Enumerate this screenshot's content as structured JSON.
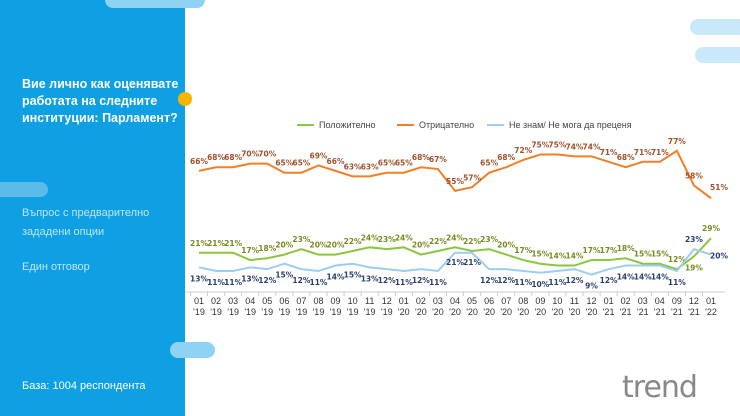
{
  "panel": {
    "title": "Вие лично как оценявате работата на следните институции:  Парламент?",
    "question_type": "Въпрос с предварително зададени опции",
    "answer_type": "Един отговор",
    "base": "База:  1004 респондента"
  },
  "logo": "trend",
  "chart_data": {
    "type": "line",
    "legend_position": "top",
    "grid": false,
    "x": [
      "01 '19",
      "02 '19",
      "03 '19",
      "04 '19",
      "05 '19",
      "06 '19",
      "07 '19",
      "08 '19",
      "09 '19",
      "10 '19",
      "11 '19",
      "12 '19",
      "01 '20",
      "02 '20",
      "03 '20",
      "04 '20",
      "05 '20",
      "06 '20",
      "07 '20",
      "08 '20",
      "09 '20",
      "10 '20",
      "11 '20",
      "12 '20",
      "01 '21",
      "02 '21",
      "03 '21",
      "04 '21",
      "09 '21",
      "12 '21",
      "01 '22"
    ],
    "ylim": [
      0,
      100
    ],
    "series": [
      {
        "name": "Положително",
        "color": "#8cc63f",
        "label_color": "#7a8a20",
        "values": [
          21,
          21,
          21,
          17,
          18,
          20,
          23,
          20,
          20,
          22,
          24,
          23,
          24,
          20,
          22,
          24,
          22,
          23,
          20,
          17,
          15,
          14,
          14,
          17,
          17,
          18,
          15,
          15,
          12,
          19,
          29
        ]
      },
      {
        "name": "Отрицателно",
        "color": "#f07f28",
        "label_color": "#a0522d",
        "values": [
          66,
          68,
          68,
          70,
          70,
          65,
          65,
          69,
          66,
          63,
          63,
          65,
          65,
          68,
          67,
          55,
          57,
          65,
          68,
          72,
          75,
          75,
          74,
          74,
          71,
          68,
          71,
          71,
          77,
          58,
          51
        ]
      },
      {
        "name": "Не знам/ Не мога да преценя",
        "color": "#9dcdf2",
        "label_color": "#2b3f6c",
        "values": [
          13,
          11,
          11,
          13,
          12,
          15,
          12,
          11,
          14,
          15,
          13,
          12,
          11,
          12,
          11,
          21,
          21,
          12,
          12,
          11,
          10,
          11,
          12,
          9,
          12,
          14,
          14,
          14,
          11,
          23,
          20
        ]
      }
    ]
  }
}
